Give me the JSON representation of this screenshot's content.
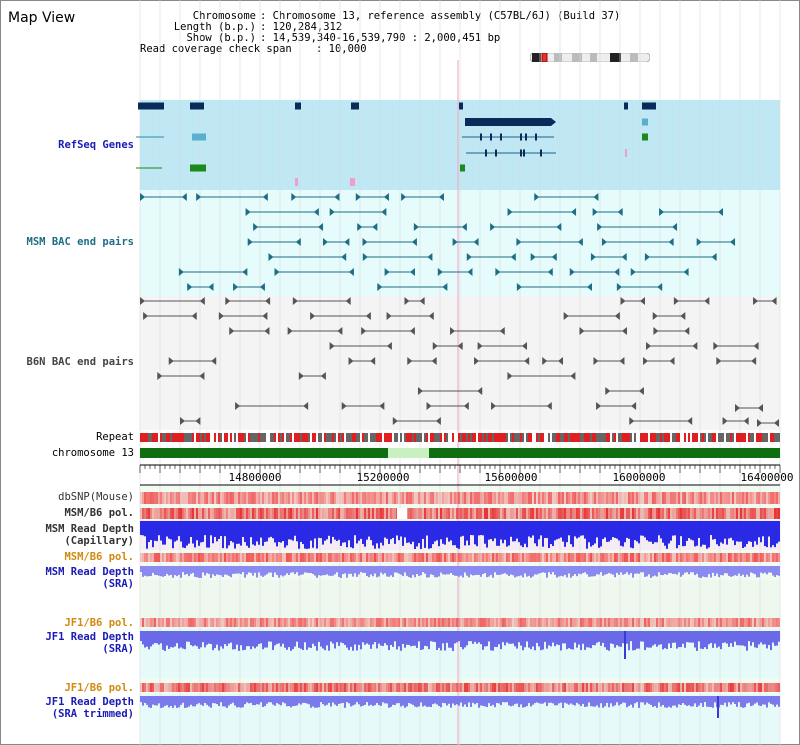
{
  "title": "Map View",
  "info": [
    {
      "key": "Chromosome",
      "value": ": Chromosome 13, reference assembly (C57BL/6J) (Build 37)"
    },
    {
      "key": "Length (b.p.)",
      "value": ": 120,284,312"
    },
    {
      "key": "Show (b.p.)",
      "value": ": 14,539,340-16,539,790 : 2,000,451 bp"
    },
    {
      "key": "Read coverage check span",
      "value": ": 10,000"
    }
  ],
  "tracks": {
    "refseq": "RefSeq Genes",
    "msm_bac": "MSM BAC end pairs",
    "b6n_bac": "B6N BAC end pairs",
    "repeat": "Repeat",
    "chromosome": "chromosome 13",
    "dbsnp": "dbSNP(Mouse)",
    "msm_b6_pol_1": "MSM/B6 pol.",
    "msm_depth_cap": "MSM Read Depth\n(Capillary)",
    "msm_b6_pol_2": "MSM/B6 pol.",
    "msm_depth_sra": "MSM Read Depth\n(SRA)",
    "jf1_b6_pol_1": "JF1/B6 pol.",
    "jf1_depth_sra": "JF1 Read Depth\n(SRA)",
    "jf1_b6_pol_2": "JF1/B6 pol.",
    "jf1_depth_trim": "JF1 Read Depth\n(SRA trimmed)"
  },
  "axis": {
    "ticks": [
      "14800000",
      "15200000",
      "15600000",
      "16000000",
      "16400000"
    ]
  },
  "colors": {
    "refseq_bg": "#bfe8f4",
    "msm_bg": "#e6fbfb",
    "b6n_bg": "#f4f4f4",
    "chrom_green": "#0f6e0f",
    "depth_blue": "#2a2ae6",
    "snp_red": "#e84040"
  }
}
